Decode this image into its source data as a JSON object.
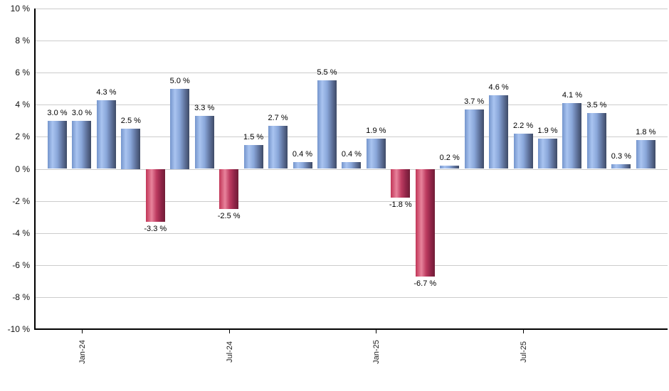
{
  "chart_data": {
    "type": "bar",
    "title": "",
    "xlabel": "",
    "ylabel": "",
    "unit": "%",
    "ylim": [
      -10,
      10
    ],
    "grid": true,
    "values": [
      3.0,
      3.0,
      4.3,
      2.5,
      -3.3,
      5.0,
      3.3,
      -2.5,
      1.5,
      2.7,
      0.4,
      5.5,
      0.4,
      1.9,
      -1.8,
      -6.7,
      0.2,
      3.7,
      4.6,
      2.2,
      1.9,
      4.1,
      3.5,
      0.3,
      1.8
    ],
    "bar_labels": [
      "3.0 %",
      "3.0 %",
      "4.3 %",
      "2.5 %",
      "-3.3 %",
      "5.0 %",
      "3.3 %",
      "-2.5 %",
      "1.5 %",
      "2.7 %",
      "0.4 %",
      "5.5 %",
      "0.4 %",
      "1.9 %",
      "-1.8 %",
      "-6.7 %",
      "0.2 %",
      "3.7 %",
      "4.6 %",
      "2.2 %",
      "1.9 %",
      "4.1 %",
      "3.5 %",
      "0.3 %",
      "1.8 %"
    ],
    "y_tick_labels": [
      "10 %",
      "8 %",
      "6 %",
      "4 %",
      "2 %",
      "0 %",
      "-2 %",
      "-4 %",
      "-6 %",
      "-8 %",
      "-10 %"
    ],
    "y_tick_values": [
      10,
      8,
      6,
      4,
      2,
      0,
      -2,
      -4,
      -6,
      -8,
      -10
    ],
    "x_ticks": [
      {
        "label": "Jan-24",
        "bar_index": 1
      },
      {
        "label": "Jul-24",
        "bar_index": 7
      },
      {
        "label": "Jan-25",
        "bar_index": 13
      },
      {
        "label": "Jul-25",
        "bar_index": 19
      }
    ],
    "legend": null,
    "colors": {
      "positive_gradient": [
        "#7495cc",
        "#a9c4f0",
        "#8aa7da",
        "#5d7099",
        "#3e4b66"
      ],
      "negative_gradient": [
        "#c13557",
        "#e8839c",
        "#bd3b60",
        "#8f2447",
        "#701d36"
      ],
      "gridline": "#cccccc",
      "axis": "#000000",
      "label_text": "#000000"
    }
  }
}
